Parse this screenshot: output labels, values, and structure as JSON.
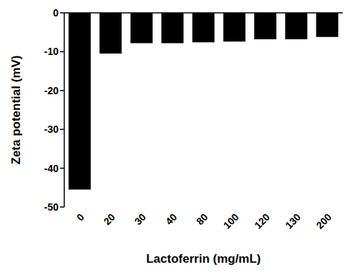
{
  "chart_data": {
    "type": "bar",
    "x_label": "Lactoferrin (mg/mL)",
    "y_label": "Zeta potential (mV)",
    "categories": [
      "0",
      "20",
      "30",
      "40",
      "80",
      "100",
      "120",
      "130",
      "200"
    ],
    "values": [
      -45.5,
      -10.5,
      -7.8,
      -7.8,
      -7.6,
      -7.4,
      -6.8,
      -6.8,
      -6.2
    ],
    "color": "#000000",
    "ylim": [
      -50,
      0
    ],
    "yticks": [
      0,
      -10,
      -20,
      -30,
      -40,
      -50
    ],
    "grid": false
  }
}
